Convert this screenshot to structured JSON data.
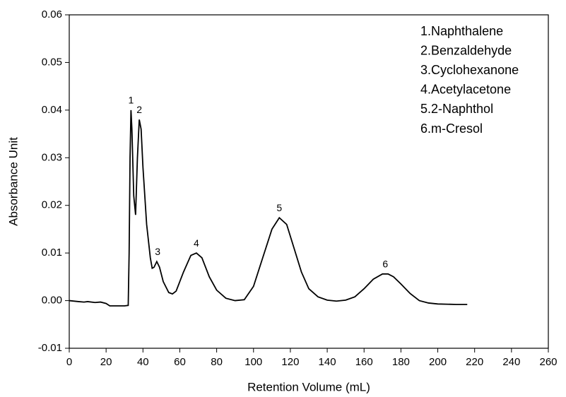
{
  "chart_data": {
    "type": "line",
    "xlabel": "Retention Volume (mL)",
    "ylabel": "Absorbance Unit",
    "xlim": [
      0,
      260
    ],
    "xticks": [
      0,
      20,
      40,
      60,
      80,
      100,
      120,
      140,
      160,
      180,
      200,
      220,
      240,
      260
    ],
    "ylim": [
      -0.01,
      0.06
    ],
    "yticks": [
      -0.01,
      {
        "value": 0,
        "label": "0.00"
      },
      0.01,
      0.02,
      0.03,
      0.04,
      0.05,
      0.06
    ],
    "series": [
      {
        "color": "#000000",
        "x": [
          0,
          5,
          8,
          10,
          14,
          17,
          20,
          22,
          25,
          30,
          32,
          32.5,
          33,
          33.5,
          34,
          35,
          36,
          37,
          38,
          39,
          40,
          42,
          44,
          45,
          46,
          47.5,
          49,
          51,
          54,
          56,
          58,
          62,
          66,
          69,
          72,
          76,
          80,
          85,
          90,
          95,
          100,
          105,
          110,
          114,
          118,
          122,
          126,
          130,
          135,
          140,
          145,
          150,
          155,
          160,
          165,
          170,
          173,
          176,
          180,
          185,
          190,
          195,
          200,
          210,
          216
        ],
        "values": [
          0,
          -0.0002,
          -0.0003,
          -0.0002,
          -0.0004,
          -0.0003,
          -0.0006,
          -0.0011,
          -0.0011,
          -0.0011,
          -0.001,
          0.01,
          0.03,
          0.04,
          0.036,
          0.022,
          0.018,
          0.03,
          0.038,
          0.036,
          0.028,
          0.016,
          0.009,
          0.0068,
          0.007,
          0.0082,
          0.007,
          0.004,
          0.0017,
          0.0014,
          0.002,
          0.006,
          0.0095,
          0.01,
          0.009,
          0.005,
          0.0022,
          0.0005,
          0,
          0.0002,
          0.003,
          0.009,
          0.015,
          0.0174,
          0.016,
          0.011,
          0.006,
          0.0025,
          0.0008,
          0.0001,
          -0.0001,
          0.0001,
          0.0008,
          0.0025,
          0.0045,
          0.0056,
          0.0056,
          0.005,
          0.0035,
          0.0015,
          0,
          -0.0005,
          -0.0007,
          -0.0008,
          -0.0008
        ]
      }
    ],
    "annotations": [
      {
        "text": "1",
        "x": 33.5,
        "y": 0.04
      },
      {
        "text": "2",
        "x": 38,
        "y": 0.038
      },
      {
        "text": "3",
        "x": 48,
        "y": 0.0082
      },
      {
        "text": "4",
        "x": 69,
        "y": 0.01
      },
      {
        "text": "5",
        "x": 114,
        "y": 0.0174
      },
      {
        "text": "6",
        "x": 171.5,
        "y": 0.0056
      }
    ],
    "notes": [
      "1.Naphthalene",
      "2.Benzaldehyde",
      "3.Cyclohexanone",
      "4.Acetylacetone",
      "5.2-Naphthol",
      "6.m-Cresol"
    ]
  }
}
